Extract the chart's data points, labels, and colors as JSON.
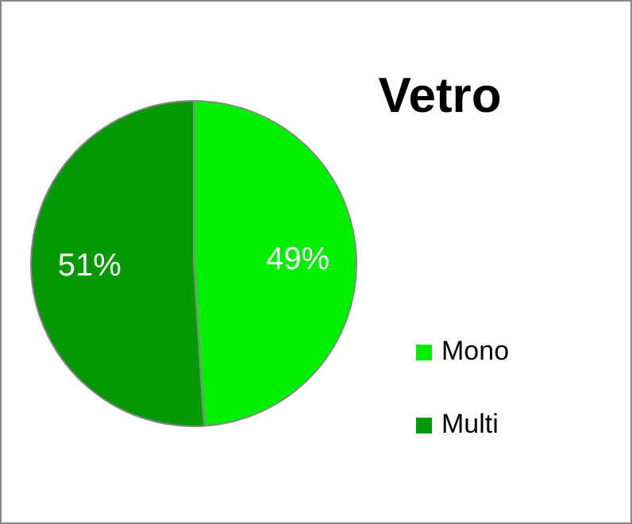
{
  "chart_data": {
    "type": "pie",
    "title": "Vetro",
    "categories": [
      "Mono",
      "Multi"
    ],
    "values": [
      49,
      51
    ],
    "colors": [
      "#00ee00",
      "#009900"
    ],
    "value_labels": [
      "49%",
      "51%"
    ],
    "legend": "right"
  }
}
